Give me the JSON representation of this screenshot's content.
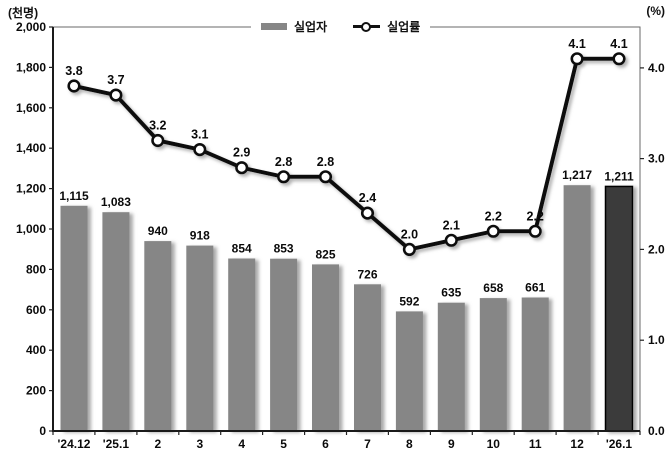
{
  "figure": {
    "left_unit": "(천명)",
    "right_unit": "(%)"
  },
  "chart_data": {
    "type": "bar+line",
    "title": "",
    "categories": [
      "'24.12",
      "'25.1",
      "2",
      "3",
      "4",
      "5",
      "6",
      "7",
      "8",
      "9",
      "10",
      "11",
      "12",
      "'26.1"
    ],
    "series": [
      {
        "name": "실업자",
        "type": "bar",
        "axis": "left",
        "values": [
          1115,
          1083,
          940,
          918,
          854,
          853,
          825,
          726,
          592,
          635,
          658,
          661,
          1217,
          1211
        ],
        "labels": [
          "1,115",
          "1,083",
          "940",
          "918",
          "854",
          "853",
          "825",
          "726",
          "592",
          "635",
          "658",
          "661",
          "1,217",
          "1,211"
        ],
        "highlight_index": 13
      },
      {
        "name": "실업률",
        "type": "line",
        "axis": "right",
        "values": [
          3.8,
          3.7,
          3.2,
          3.1,
          2.9,
          2.8,
          2.8,
          2.4,
          2.0,
          2.1,
          2.2,
          2.2,
          4.1,
          4.1
        ],
        "labels": [
          "3.8",
          "3.7",
          "3.2",
          "3.1",
          "2.9",
          "2.8",
          "2.8",
          "2.4",
          "2.0",
          "2.1",
          "2.2",
          "2.2",
          "4.1",
          "4.1"
        ]
      }
    ],
    "left_axis": {
      "title": "(천명)",
      "min": 0,
      "max": 2000,
      "tick_values": [
        0,
        200,
        400,
        600,
        800,
        1000,
        1200,
        1400,
        1600,
        1800,
        2000
      ],
      "tick_labels": [
        "0",
        "200",
        "400",
        "600",
        "800",
        "1,000",
        "1,200",
        "1,400",
        "1,600",
        "1,800",
        "2,000"
      ]
    },
    "right_axis": {
      "title": "(%)",
      "min": 0,
      "max": 4.45,
      "tick_values": [
        1,
        2,
        3,
        4
      ],
      "tick_labels": [
        "1.0",
        "2.0",
        "3.0",
        "4.0"
      ],
      "bottom_label": "0.0"
    },
    "legend_position": "top-center",
    "grid": false,
    "colors": {
      "bar": "#868686",
      "bar_highlight": "#3a3a3a",
      "line": "#111111",
      "marker_fill": "#ffffff",
      "text": "#0a0a0a"
    }
  }
}
